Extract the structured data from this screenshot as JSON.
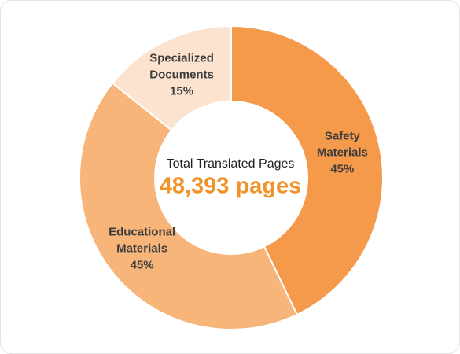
{
  "chart_data": {
    "type": "donut",
    "center_title": "Total Translated Pages",
    "center_value": "48,393 pages",
    "categories": [
      "Safety Materials",
      "Educational Materials",
      "Specialized Documents"
    ],
    "values": [
      45,
      45,
      15
    ],
    "value_labels": [
      "45%",
      "45%",
      "15%"
    ],
    "colors": [
      "#f59a4a",
      "#f7b57a",
      "#fce3cf"
    ]
  }
}
